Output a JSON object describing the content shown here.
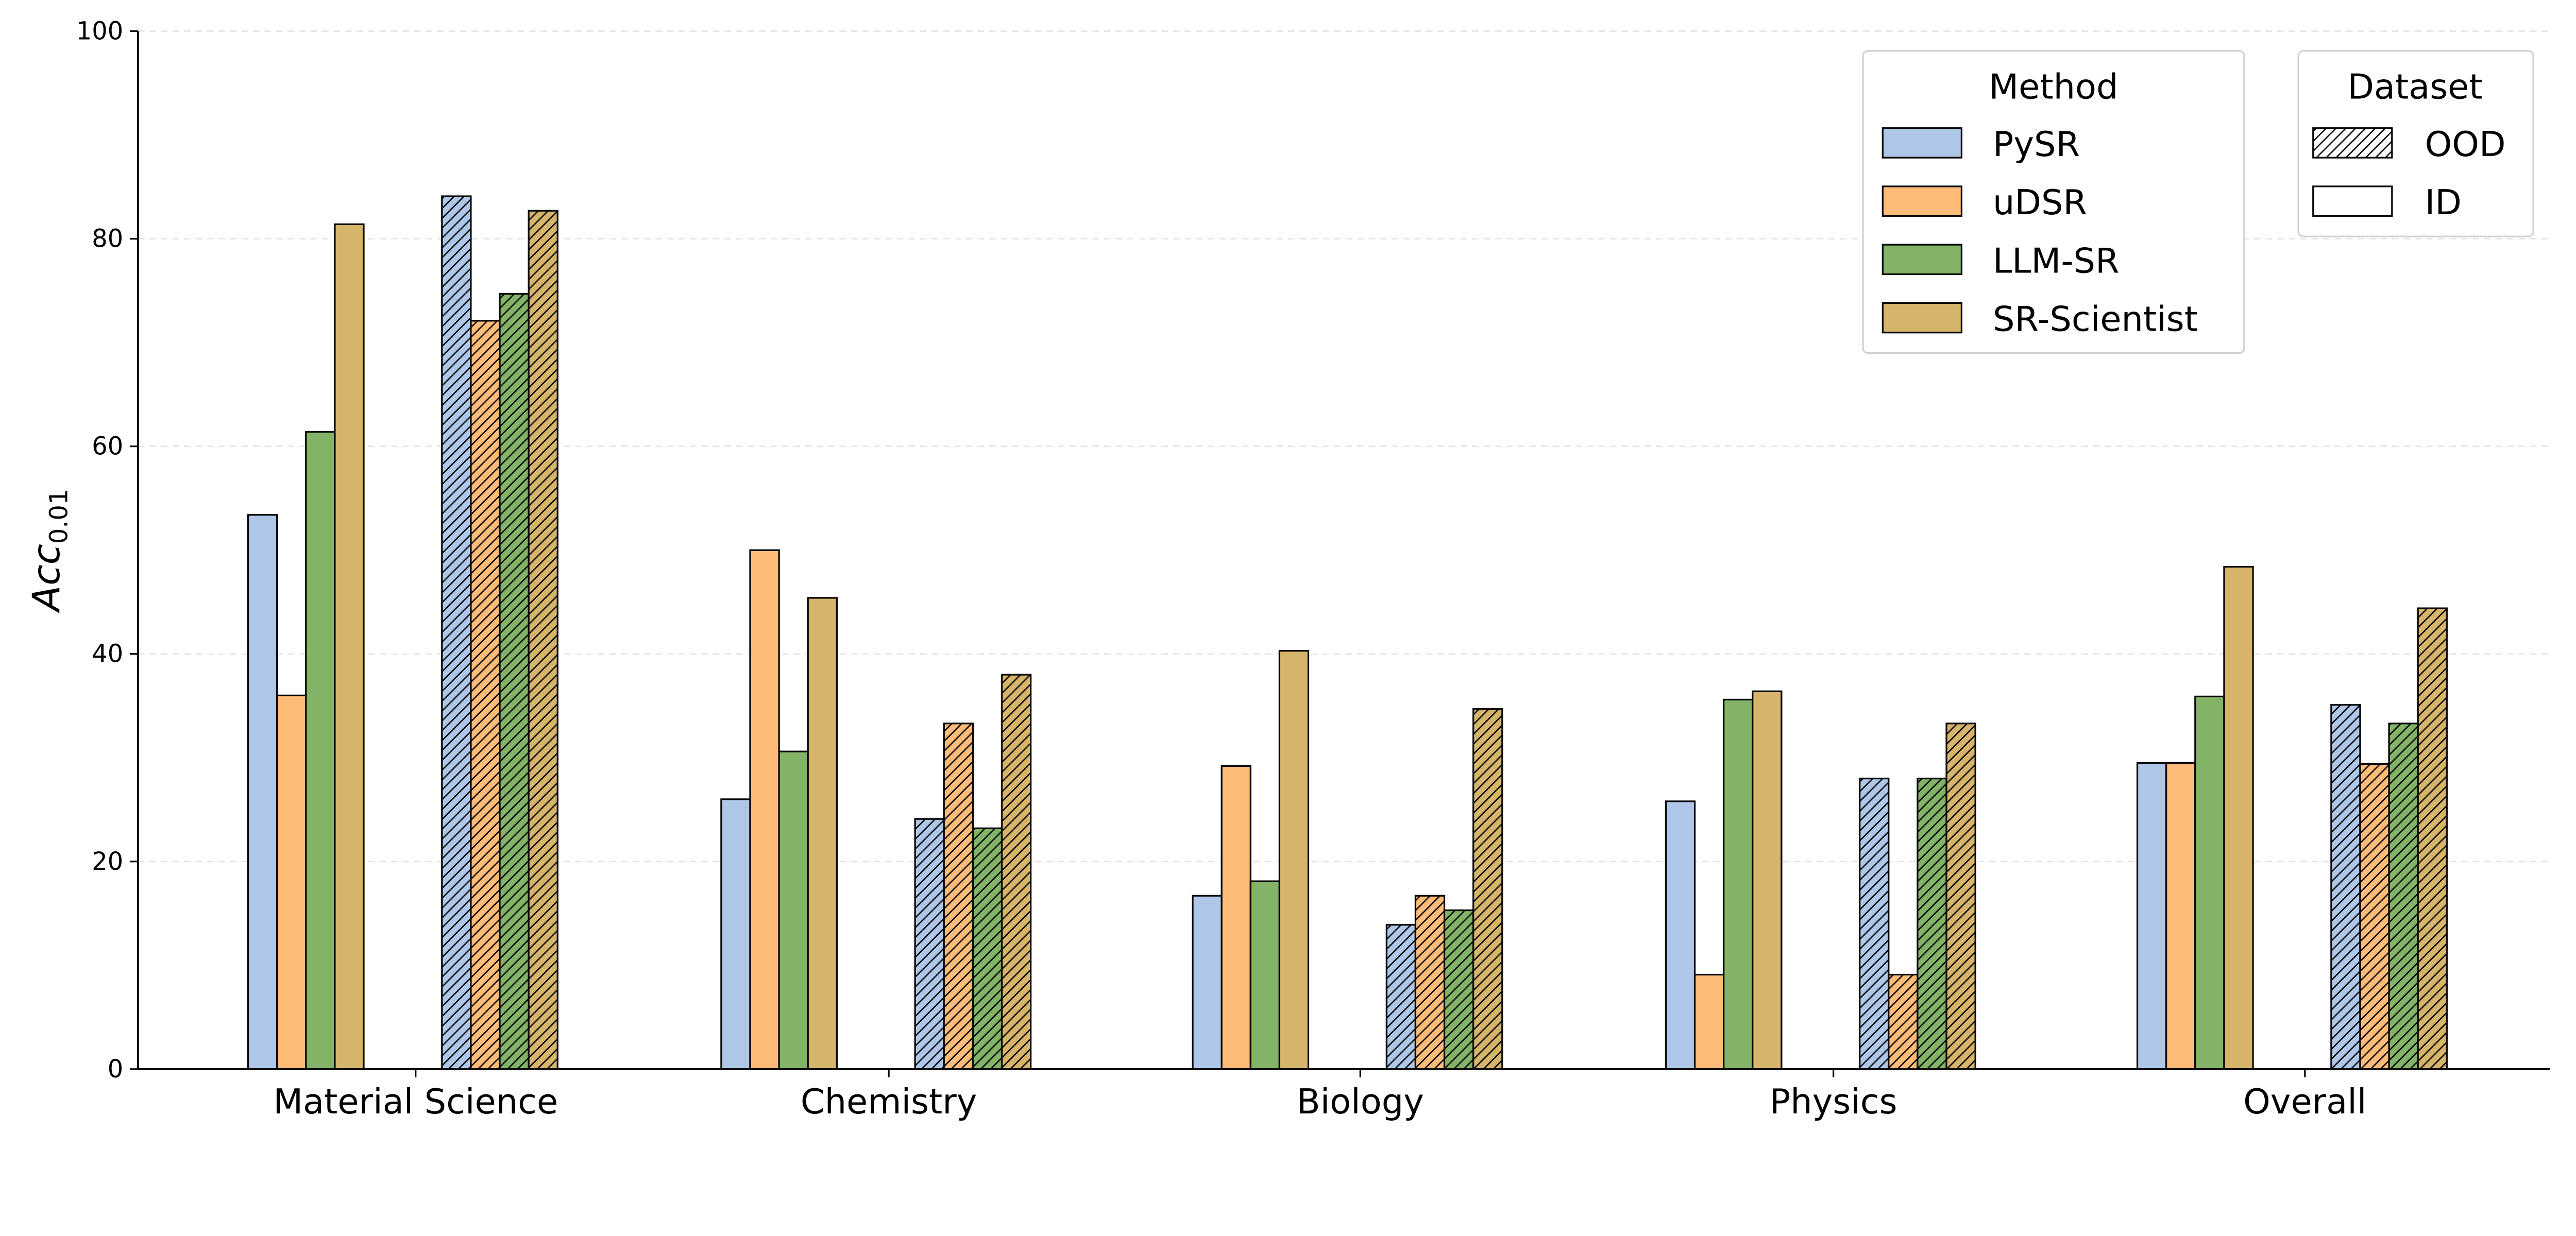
{
  "chart_data": {
    "type": "bar",
    "title": "",
    "xlabel": "",
    "ylabel": "Acc",
    "ylabel_subscript": "0.01",
    "ylim": [
      0,
      100
    ],
    "yticks": [
      "0",
      "20",
      "40",
      "60",
      "80",
      "100"
    ],
    "grid": "horizontal dashed",
    "categories": [
      "Material Science",
      "Chemistry",
      "Biology",
      "Physics",
      "Overall"
    ],
    "series": [
      {
        "name": "PySR",
        "dataset": "ID",
        "color": "#aec7e8",
        "values": [
          53.4,
          26.0,
          16.7,
          25.8,
          29.5
        ]
      },
      {
        "name": "uDSR",
        "dataset": "ID",
        "color": "#ffbb78",
        "values": [
          36.0,
          50.0,
          29.2,
          9.1,
          29.5
        ]
      },
      {
        "name": "LLM-SR",
        "dataset": "ID",
        "color": "#82b366",
        "values": [
          61.4,
          30.6,
          18.1,
          35.6,
          35.9
        ]
      },
      {
        "name": "SR-Scientist",
        "dataset": "ID",
        "color": "#d6b46a",
        "values": [
          81.4,
          45.4,
          40.3,
          36.4,
          48.4
        ]
      },
      {
        "name": "PySR",
        "dataset": "OOD",
        "color": "#aec7e8",
        "values": [
          84.1,
          24.1,
          13.9,
          28.0,
          35.1
        ]
      },
      {
        "name": "uDSR",
        "dataset": "OOD",
        "color": "#ffbb78",
        "values": [
          72.1,
          33.3,
          16.7,
          9.1,
          29.4
        ]
      },
      {
        "name": "LLM-SR",
        "dataset": "OOD",
        "color": "#82b366",
        "values": [
          74.7,
          23.2,
          15.3,
          28.0,
          33.3
        ]
      },
      {
        "name": "SR-Scientist",
        "dataset": "OOD",
        "color": "#d6b46a",
        "values": [
          82.7,
          38.0,
          34.7,
          33.3,
          44.4
        ]
      }
    ],
    "legends": {
      "method": {
        "title": "Method",
        "placement": "top-right",
        "entries": [
          {
            "label": "PySR",
            "color": "#aec7e8"
          },
          {
            "label": "uDSR",
            "color": "#ffbb78"
          },
          {
            "label": "LLM-SR",
            "color": "#82b366"
          },
          {
            "label": "SR-Scientist",
            "color": "#d6b46a"
          }
        ]
      },
      "dataset": {
        "title": "Dataset",
        "placement": "top-right",
        "entries": [
          {
            "label": "OOD",
            "hatch": "diagonal"
          },
          {
            "label": "ID",
            "hatch": "none"
          }
        ]
      }
    }
  }
}
